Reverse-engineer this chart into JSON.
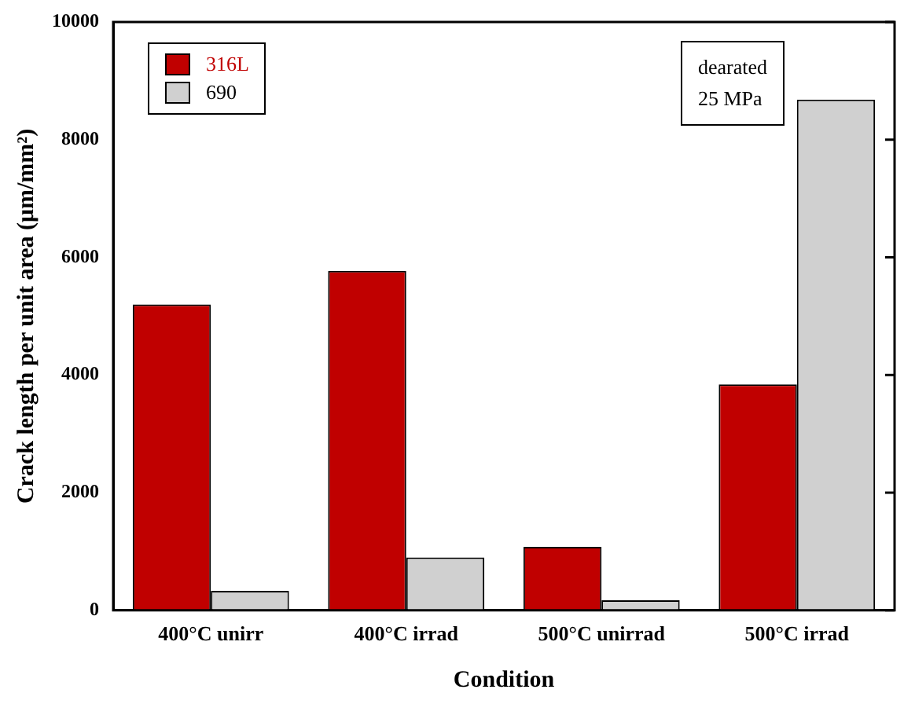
{
  "chart_data": {
    "type": "bar",
    "xlabel": "Condition",
    "ylabel": "Crack length per unit area (μm/mm²)",
    "categories": [
      "400°C unirr",
      "400°C irrad",
      "500°C unirrad",
      "500°C irrad"
    ],
    "series": [
      {
        "name": "316L",
        "color": "#c00000",
        "values": [
          5200,
          5770,
          1080,
          3840
        ]
      },
      {
        "name": "690",
        "color": "#d0d0d0",
        "values": [
          330,
          900,
          170,
          8680
        ]
      }
    ],
    "ylim": [
      0,
      10000
    ],
    "yticks": [
      0,
      2000,
      4000,
      6000,
      8000,
      10000
    ],
    "grid": false,
    "legend": "top left",
    "annotations": [
      "dearated",
      "25 MPa"
    ]
  }
}
